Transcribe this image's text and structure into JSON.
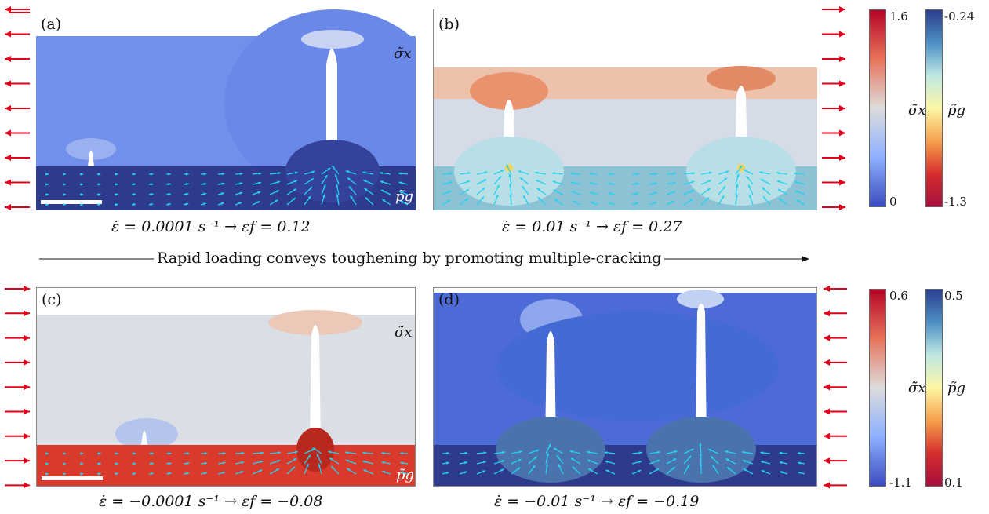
{
  "panels": [
    {
      "id": "a",
      "label": "(a)",
      "caption": "ε̇ = 0.0001 s⁻¹  →  εf = 0.12",
      "sigma_label": "σ̃x",
      "p_label": "p̃g"
    },
    {
      "id": "b",
      "label": "(b)",
      "caption": "ε̇ = 0.01 s⁻¹  →  εf = 0.27"
    },
    {
      "id": "c",
      "label": "(c)",
      "caption": "ε̇ = −0.0001 s⁻¹  →  εf = −0.08",
      "sigma_label": "σ̃x",
      "p_label": "p̃g"
    },
    {
      "id": "d",
      "label": "(d)",
      "caption": "ε̇ = −0.01 s⁻¹  →  εf = −0.19"
    }
  ],
  "banner": "Rapid loading conveys toughening by promoting multiple-cracking",
  "colorbars": {
    "top": {
      "sigma_label": "σ̃x",
      "sigma_max": "1.6",
      "sigma_min": "0",
      "p_label": "p̃g",
      "p_max": "-0.24",
      "p_min": "-1.3"
    },
    "bottom": {
      "sigma_label": "σ̃x",
      "sigma_max": "0.6",
      "sigma_min": "-1.1",
      "p_label": "p̃g",
      "p_max": "0.5",
      "p_min": "0.1"
    }
  },
  "colors": {
    "arrow": "#e0001a",
    "flow_arrow": "#22d3f0",
    "blue_dark": "#2e3a8c",
    "red": "#d93a2b"
  }
}
